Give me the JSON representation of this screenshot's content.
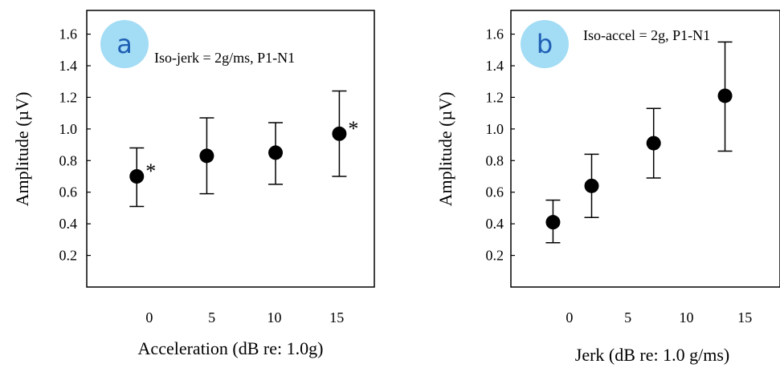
{
  "chart_data": [
    {
      "type": "scatter",
      "badge": "a",
      "annotation": "Iso-jerk = 2g/ms,  P1-N1",
      "xlabel": "Acceleration (dB re: 1.0g)",
      "ylabel": "Amplitude (µV)",
      "xlim": [
        -5,
        18
      ],
      "ylim": [
        0,
        1.75
      ],
      "xticks": [
        0,
        5,
        10,
        15
      ],
      "xtick_labels": [
        "0",
        "5",
        "10",
        "15"
      ],
      "yticks": [
        0.2,
        0.4,
        0.6,
        0.8,
        1.0,
        1.2,
        1.4,
        1.6
      ],
      "ytick_labels": [
        "0.2",
        "0.4",
        "0.6",
        "0.8",
        "1.0",
        "1.2",
        "1.4",
        "1.6"
      ],
      "grid": false,
      "points": [
        {
          "x": -1,
          "y": 0.7,
          "err_low": 0.51,
          "err_high": 0.88,
          "marker": "*"
        },
        {
          "x": 4.6,
          "y": 0.83,
          "err_low": 0.59,
          "err_high": 1.07,
          "marker": ""
        },
        {
          "x": 10.1,
          "y": 0.85,
          "err_low": 0.65,
          "err_high": 1.04,
          "marker": ""
        },
        {
          "x": 15.2,
          "y": 0.97,
          "err_low": 0.7,
          "err_high": 1.24,
          "marker": "*"
        }
      ]
    },
    {
      "type": "scatter",
      "badge": "b",
      "annotation": "Iso-accel = 2g,  P1-N1",
      "xlabel": "Jerk (dB re: 1.0 g/ms)",
      "ylabel": "Amplitude (µV)",
      "xlim": [
        -5,
        18
      ],
      "ylim": [
        0,
        1.75
      ],
      "xticks": [
        0,
        5,
        10,
        15
      ],
      "xtick_labels": [
        "0",
        "5",
        "10",
        "15"
      ],
      "yticks": [
        0.2,
        0.4,
        0.6,
        0.8,
        1.0,
        1.2,
        1.4,
        1.6
      ],
      "ytick_labels": [
        "0.2",
        "0.4",
        "0.6",
        "0.8",
        "1.0",
        "1.2",
        "1.4",
        "1.6"
      ],
      "grid": false,
      "points": [
        {
          "x": -1.4,
          "y": 0.41,
          "err_low": 0.28,
          "err_high": 0.55,
          "marker": ""
        },
        {
          "x": 1.9,
          "y": 0.64,
          "err_low": 0.44,
          "err_high": 0.84,
          "marker": ""
        },
        {
          "x": 7.2,
          "y": 0.91,
          "err_low": 0.69,
          "err_high": 1.13,
          "marker": ""
        },
        {
          "x": 13.3,
          "y": 1.21,
          "err_low": 0.86,
          "err_high": 1.55,
          "marker": ""
        }
      ]
    }
  ],
  "colors": {
    "badge_fill": "#a3dcf5",
    "badge_text": "#1f5fb4",
    "ink": "#000000"
  }
}
